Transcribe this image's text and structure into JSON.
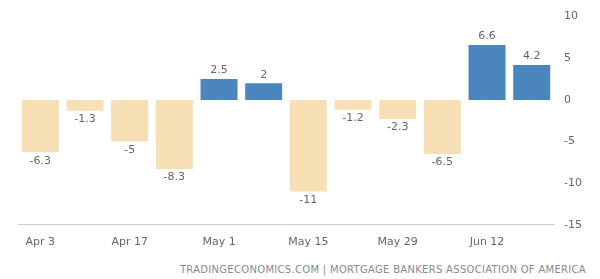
{
  "chart_data": {
    "type": "bar",
    "source": "TRADINGECONOMICS.COM | MORTGAGE BANKERS ASSOCIATION OF AMERICA",
    "categories": [
      "Apr 3",
      null,
      "Apr 17",
      null,
      "May 1",
      null,
      "May 15",
      null,
      "May 29",
      null,
      "Jun 12",
      null
    ],
    "values": [
      -6.3,
      -1.3,
      -5,
      -8.3,
      2.5,
      2,
      -11,
      -1.2,
      -2.3,
      -6.5,
      6.6,
      4.2
    ],
    "colors": [
      "#f6dfb5",
      "#f6dfb5",
      "#f6dfb5",
      "#f6dfb5",
      "#4a86bd",
      "#4a86bd",
      "#f6dfb5",
      "#f6dfb5",
      "#f6dfb5",
      "#f6dfb5",
      "#4a86bd",
      "#4a86bd"
    ],
    "ylim": [
      -15,
      10
    ],
    "yticks": [
      -15,
      -10,
      -5,
      0,
      5,
      10
    ],
    "grid": false,
    "data_labels": true
  }
}
